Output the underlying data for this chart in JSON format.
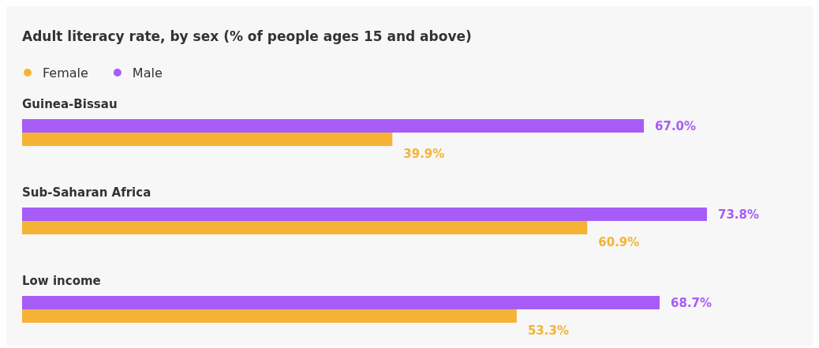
{
  "chart_data": {
    "type": "bar",
    "orientation": "horizontal",
    "title": "Adult literacy rate, by sex (% of people ages 15 and above)",
    "categories": [
      "Guinea-Bissau",
      "Sub-Saharan Africa",
      "Low income"
    ],
    "legend": "top left",
    "series": [
      {
        "name": "Female",
        "color": "#f5b335",
        "values": [
          39.9,
          60.9,
          53.3
        ],
        "value_labels": [
          "39.9%",
          "60.9%",
          "53.3%"
        ]
      },
      {
        "name": "Male",
        "color": "#a75cf7",
        "values": [
          67.0,
          73.8,
          68.7
        ],
        "value_labels": [
          "67.0%",
          "73.8%",
          "68.7%"
        ]
      }
    ]
  }
}
